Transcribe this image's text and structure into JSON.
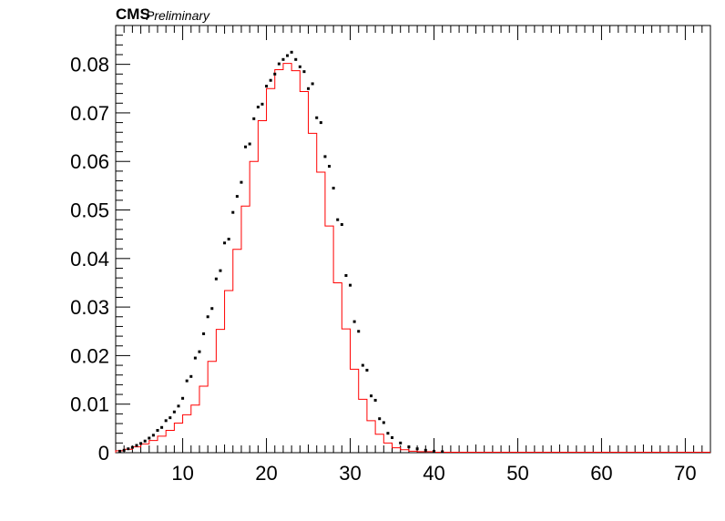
{
  "labels": {
    "experiment": "CMS",
    "status": "Preliminary"
  },
  "chart_data": {
    "type": "histogram",
    "xlim": [
      2,
      73
    ],
    "ylim": [
      0,
      0.088
    ],
    "x_ticks": [
      10,
      20,
      30,
      40,
      50,
      60,
      70
    ],
    "x_tick_labels": [
      "10",
      "20",
      "30",
      "40",
      "50",
      "60",
      "70"
    ],
    "y_ticks": [
      0,
      0.01,
      0.02,
      0.03,
      0.04,
      0.05,
      0.06,
      0.07,
      0.08
    ],
    "y_tick_labels": [
      "0",
      "0.01",
      "0.02",
      "0.03",
      "0.04",
      "0.05",
      "0.06",
      "0.07",
      "0.08"
    ],
    "grid": false,
    "histogram": {
      "color": "#ff0000",
      "bin_edges": [
        2,
        3,
        4,
        5,
        6,
        7,
        8,
        9,
        10,
        11,
        12,
        13,
        14,
        15,
        16,
        17,
        18,
        19,
        20,
        21,
        22,
        23,
        24,
        25,
        26,
        27,
        28,
        29,
        30,
        31,
        32,
        33,
        34,
        35,
        36,
        37,
        38,
        39,
        40,
        41,
        42,
        43,
        44,
        45,
        46,
        47,
        48,
        49,
        50,
        51,
        52,
        53,
        54,
        55,
        56,
        57,
        58,
        59,
        60,
        61,
        62,
        63,
        64,
        65,
        66,
        67,
        68,
        69,
        70,
        71,
        72,
        73
      ],
      "values": [
        0.0004,
        0.0007,
        0.0012,
        0.0018,
        0.0025,
        0.0034,
        0.0046,
        0.0061,
        0.0078,
        0.0098,
        0.0137,
        0.0188,
        0.0254,
        0.0334,
        0.0419,
        0.0508,
        0.06,
        0.0684,
        0.075,
        0.0789,
        0.0802,
        0.0787,
        0.0744,
        0.0658,
        0.0578,
        0.0467,
        0.035,
        0.0255,
        0.0172,
        0.011,
        0.0066,
        0.0038,
        0.002,
        0.001,
        0.0006,
        0.0003,
        0.0002,
        0.0002,
        0.0001,
        0.0001,
        0.0001,
        0.0001,
        0.0001,
        0.0001,
        0.0001,
        0.0001,
        0.0001,
        0.0001,
        0.0001,
        0.0001,
        0.0001,
        0.0001,
        0.0001,
        0.0001,
        0.0001,
        0.0001,
        0.0001,
        0.0001,
        0.0001,
        0.0001,
        0.0001,
        0.0001,
        0.0001,
        0.0001,
        0.0001,
        0.0001,
        0.0001,
        0.0001,
        0.0001,
        0.0001,
        0.0001
      ]
    },
    "points": {
      "color": "#000000",
      "x": [
        2.5,
        3,
        3.5,
        4,
        4.5,
        5,
        5.5,
        6,
        6.5,
        7,
        7.5,
        8,
        8.5,
        9,
        9.5,
        10,
        10.5,
        11,
        11.5,
        12,
        12.5,
        13,
        13.5,
        14,
        14.5,
        15,
        15.5,
        16,
        16.5,
        17,
        17.5,
        18,
        18.5,
        19,
        19.5,
        20,
        20.5,
        21,
        21.5,
        22,
        22.5,
        23,
        23.5,
        24,
        24.5,
        25,
        25.5,
        26,
        26.5,
        27,
        27.5,
        28,
        28.5,
        29,
        29.5,
        30,
        30.5,
        31,
        31.5,
        32,
        32.5,
        33,
        33.5,
        34,
        34.5,
        35,
        36,
        37,
        38,
        39,
        40,
        41
      ],
      "y": [
        0.0003,
        0.0005,
        0.0008,
        0.0011,
        0.0015,
        0.0019,
        0.0024,
        0.003,
        0.0036,
        0.0046,
        0.0052,
        0.0066,
        0.0072,
        0.0084,
        0.0096,
        0.0112,
        0.0148,
        0.0157,
        0.0195,
        0.0208,
        0.0245,
        0.028,
        0.0297,
        0.0358,
        0.0375,
        0.0432,
        0.044,
        0.0495,
        0.0528,
        0.0557,
        0.063,
        0.0636,
        0.0688,
        0.0712,
        0.0718,
        0.0755,
        0.0767,
        0.078,
        0.0801,
        0.081,
        0.0818,
        0.0825,
        0.081,
        0.0795,
        0.0785,
        0.075,
        0.076,
        0.069,
        0.068,
        0.061,
        0.059,
        0.0545,
        0.048,
        0.047,
        0.0365,
        0.0345,
        0.027,
        0.025,
        0.018,
        0.017,
        0.0117,
        0.0108,
        0.007,
        0.0062,
        0.004,
        0.0031,
        0.002,
        0.0012,
        0.0008,
        0.0005,
        0.0003,
        0.0002
      ]
    }
  }
}
